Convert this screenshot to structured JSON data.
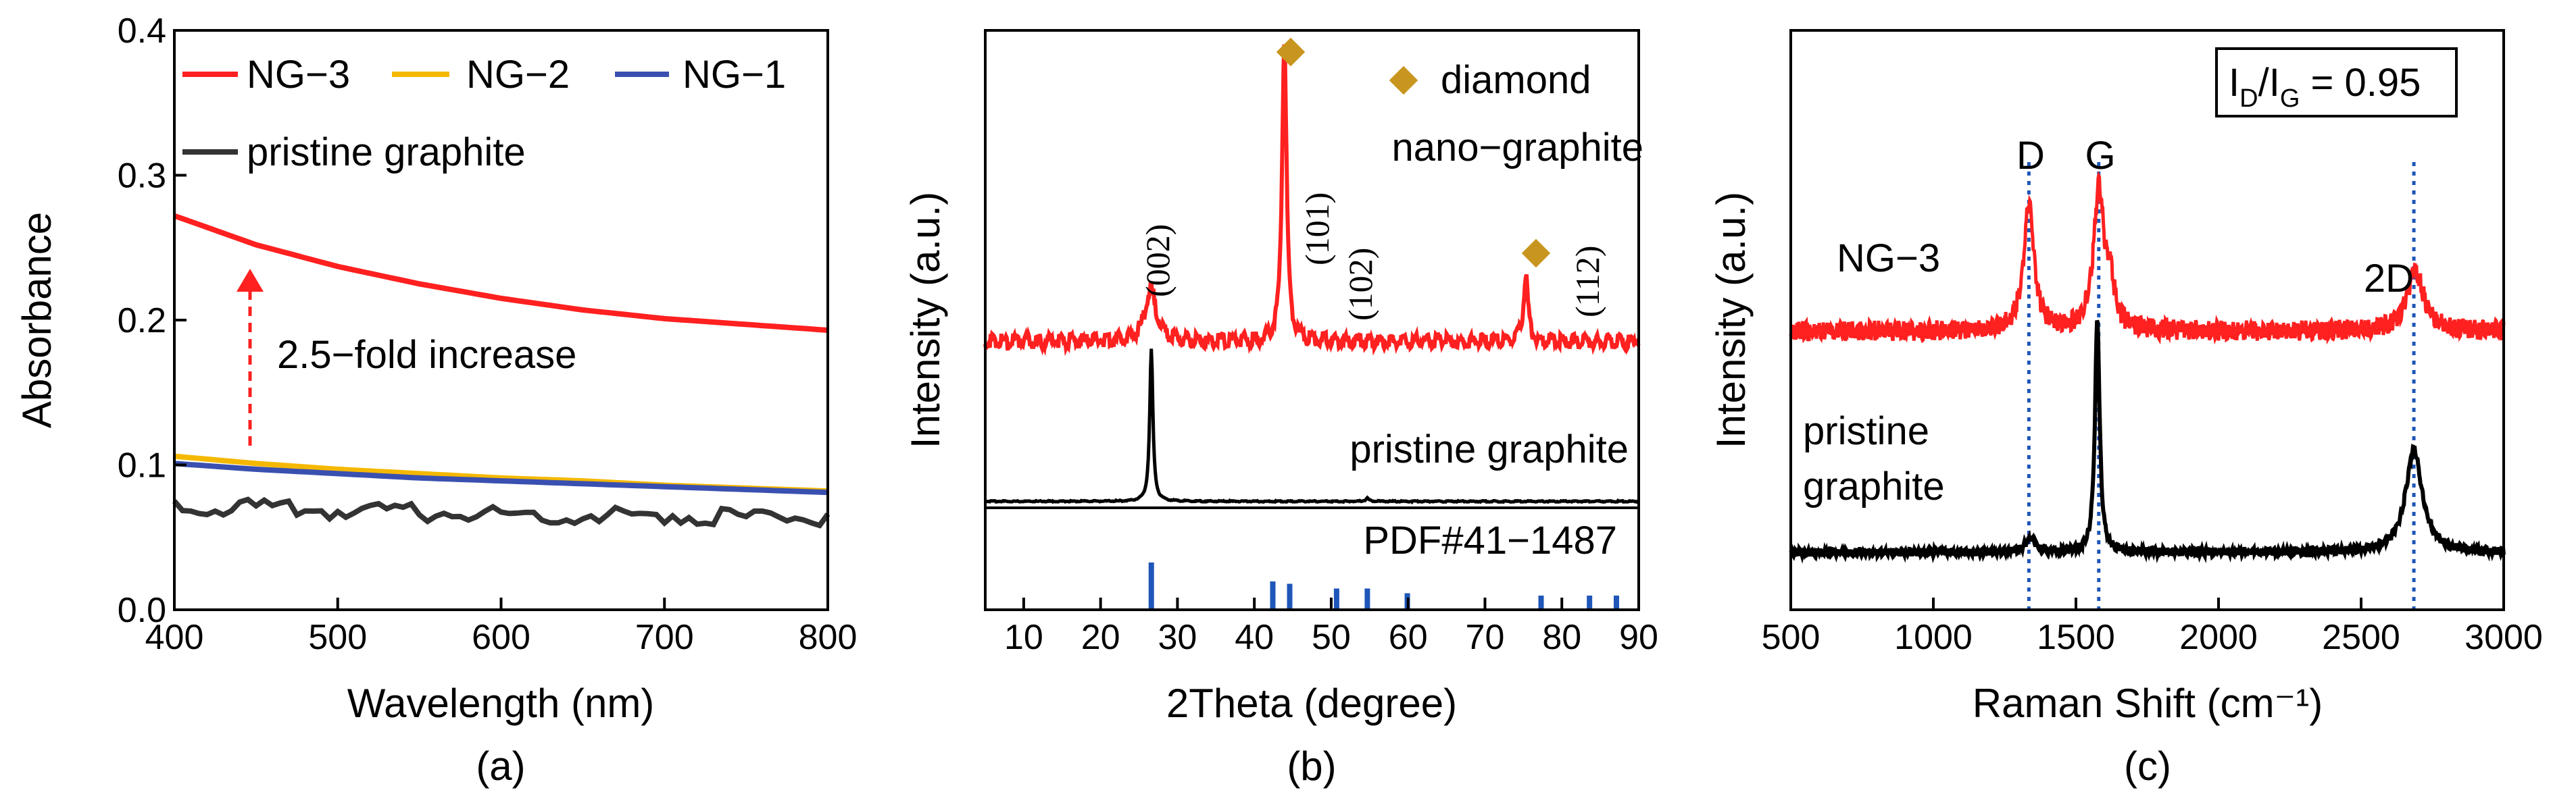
{
  "colors": {
    "ng3": "#ff2020",
    "ng2": "#f5b800",
    "ng1": "#3a50b0",
    "pristine": "#333333",
    "diamond_marker": "#c8961e",
    "pdf_sticks": "#1f56b8",
    "raman_guides": "#1f56b8"
  },
  "chart_data": [
    {
      "panel_label": "(a)",
      "type": "line",
      "title": "",
      "xlabel": "Wavelength (nm)",
      "ylabel": "Absorbance",
      "xlim": [
        400,
        800
      ],
      "ylim": [
        0,
        0.4
      ],
      "xticks": [
        "400",
        "500",
        "600",
        "700",
        "800"
      ],
      "yticks": [
        "0.0",
        "0.1",
        "0.2",
        "0.3",
        "0.4"
      ],
      "legend_position": "top-left",
      "series": [
        {
          "name": "NG−3",
          "color": "#ff2020",
          "x": [
            400,
            450,
            500,
            550,
            600,
            650,
            700,
            750,
            800
          ],
          "y": [
            0.272,
            0.252,
            0.237,
            0.225,
            0.215,
            0.207,
            0.201,
            0.197,
            0.193
          ]
        },
        {
          "name": "NG−2",
          "color": "#f5b800",
          "x": [
            400,
            450,
            500,
            550,
            600,
            650,
            700,
            750,
            800
          ],
          "y": [
            0.106,
            0.101,
            0.097,
            0.094,
            0.091,
            0.089,
            0.086,
            0.084,
            0.082
          ]
        },
        {
          "name": "NG−1",
          "color": "#3a50b0",
          "x": [
            400,
            450,
            500,
            550,
            600,
            650,
            700,
            750,
            800
          ],
          "y": [
            0.101,
            0.097,
            0.094,
            0.091,
            0.089,
            0.087,
            0.085,
            0.083,
            0.081
          ]
        },
        {
          "name": "pristine graphite",
          "color": "#333333",
          "x": [
            400,
            450,
            500,
            550,
            600,
            650,
            700,
            750,
            800
          ],
          "y": [
            0.075,
            0.073,
            0.071,
            0.07,
            0.069,
            0.068,
            0.068,
            0.067,
            0.066
          ]
        }
      ],
      "annotation": {
        "text": "2.5−fold increase",
        "arrow_x": 455,
        "arrow_from": 0.105,
        "arrow_to": 0.25
      }
    },
    {
      "panel_label": "(b)",
      "type": "line",
      "title": "",
      "xlabel": "2Theta (degree)",
      "ylabel": "Intensity (a.u.)",
      "xlim": [
        5,
        90
      ],
      "xticks": [
        "10",
        "20",
        "30",
        "40",
        "50",
        "60",
        "70",
        "80",
        "90"
      ],
      "y_ticklabels": "none",
      "series": [
        {
          "name": "nano−graphite",
          "color": "#ff2020",
          "peaks_2theta": [
            26.5,
            43.9,
            75.3
          ],
          "peak_heights_au": [
            0.12,
            0.72,
            0.16
          ],
          "baseline_au": 0.4
        },
        {
          "name": "pristine graphite",
          "color": "#000000",
          "peaks_2theta": [
            26.6,
            54.7
          ],
          "peak_heights_au": [
            0.49,
            0.01
          ],
          "baseline_au": 0.0
        }
      ],
      "legend": {
        "marker_label": "diamond"
      },
      "reference_label": "PDF#41−1487",
      "reference_sticks_2theta": [
        26.6,
        42.4,
        44.6,
        50.7,
        54.7,
        59.9,
        77.3,
        83.6,
        87.1
      ],
      "reference_stick_intensity": [
        1.0,
        0.6,
        0.55,
        0.45,
        0.45,
        0.35,
        0.3,
        0.3,
        0.3
      ],
      "reflection_labels": [
        {
          "text": "(002)",
          "x": 26.5
        },
        {
          "text": "(101)",
          "x": 44.3
        },
        {
          "text": "(102)",
          "x": 48.5
        },
        {
          "text": "(112)",
          "x": 82.2
        }
      ],
      "diamond_peaks_2theta": [
        43.9,
        75.3
      ]
    },
    {
      "panel_label": "(c)",
      "type": "line",
      "title": "",
      "xlabel": "Raman Shift (cm⁻¹)",
      "ylabel": "Intensity (a.u.)",
      "xlim": [
        500,
        3000
      ],
      "xticks": [
        "500",
        "1000",
        "1500",
        "2000",
        "2500",
        "3000"
      ],
      "y_ticklabels": "none",
      "ratio_box": "I_D/I_G = 0.95",
      "band_labels": [
        {
          "text": "D",
          "x": 1335
        },
        {
          "text": "G",
          "x": 1580
        },
        {
          "text": "2D",
          "x": 2685
        }
      ],
      "guide_lines_cm": [
        1335,
        1580,
        2685
      ],
      "series": [
        {
          "name": "NG−3",
          "color": "#ff2020",
          "peaks_cm": [
            1335,
            1580,
            1620,
            2690
          ],
          "peak_heights_au": [
            0.38,
            0.41,
            0.12,
            0.18
          ],
          "baseline_au": 0.55
        },
        {
          "name": "pristine graphite",
          "color": "#000000",
          "peaks_cm": [
            1340,
            1575,
            2685
          ],
          "peak_heights_au": [
            0.05,
            0.86,
            0.38
          ],
          "baseline_au": 0.0
        }
      ]
    }
  ],
  "labels": {
    "a": {
      "legend": [
        "NG−3",
        "NG−2",
        "NG−1",
        "pristine graphite"
      ],
      "annotation": "2.5−fold increase"
    },
    "b": {
      "diamond": "diamond",
      "nano": "nano−graphite",
      "pristine": "pristine graphite",
      "pdf": "PDF#41−1487"
    },
    "c": {
      "ratio_I": "I",
      "ratio_D": "D",
      "ratio_sep": "/I",
      "ratio_G": "G",
      "ratio_val": " = 0.95",
      "ng3": "NG−3",
      "pristine_1": "pristine",
      "pristine_2": "graphite",
      "D": "D",
      "G": "G",
      "2D": "2D"
    }
  }
}
